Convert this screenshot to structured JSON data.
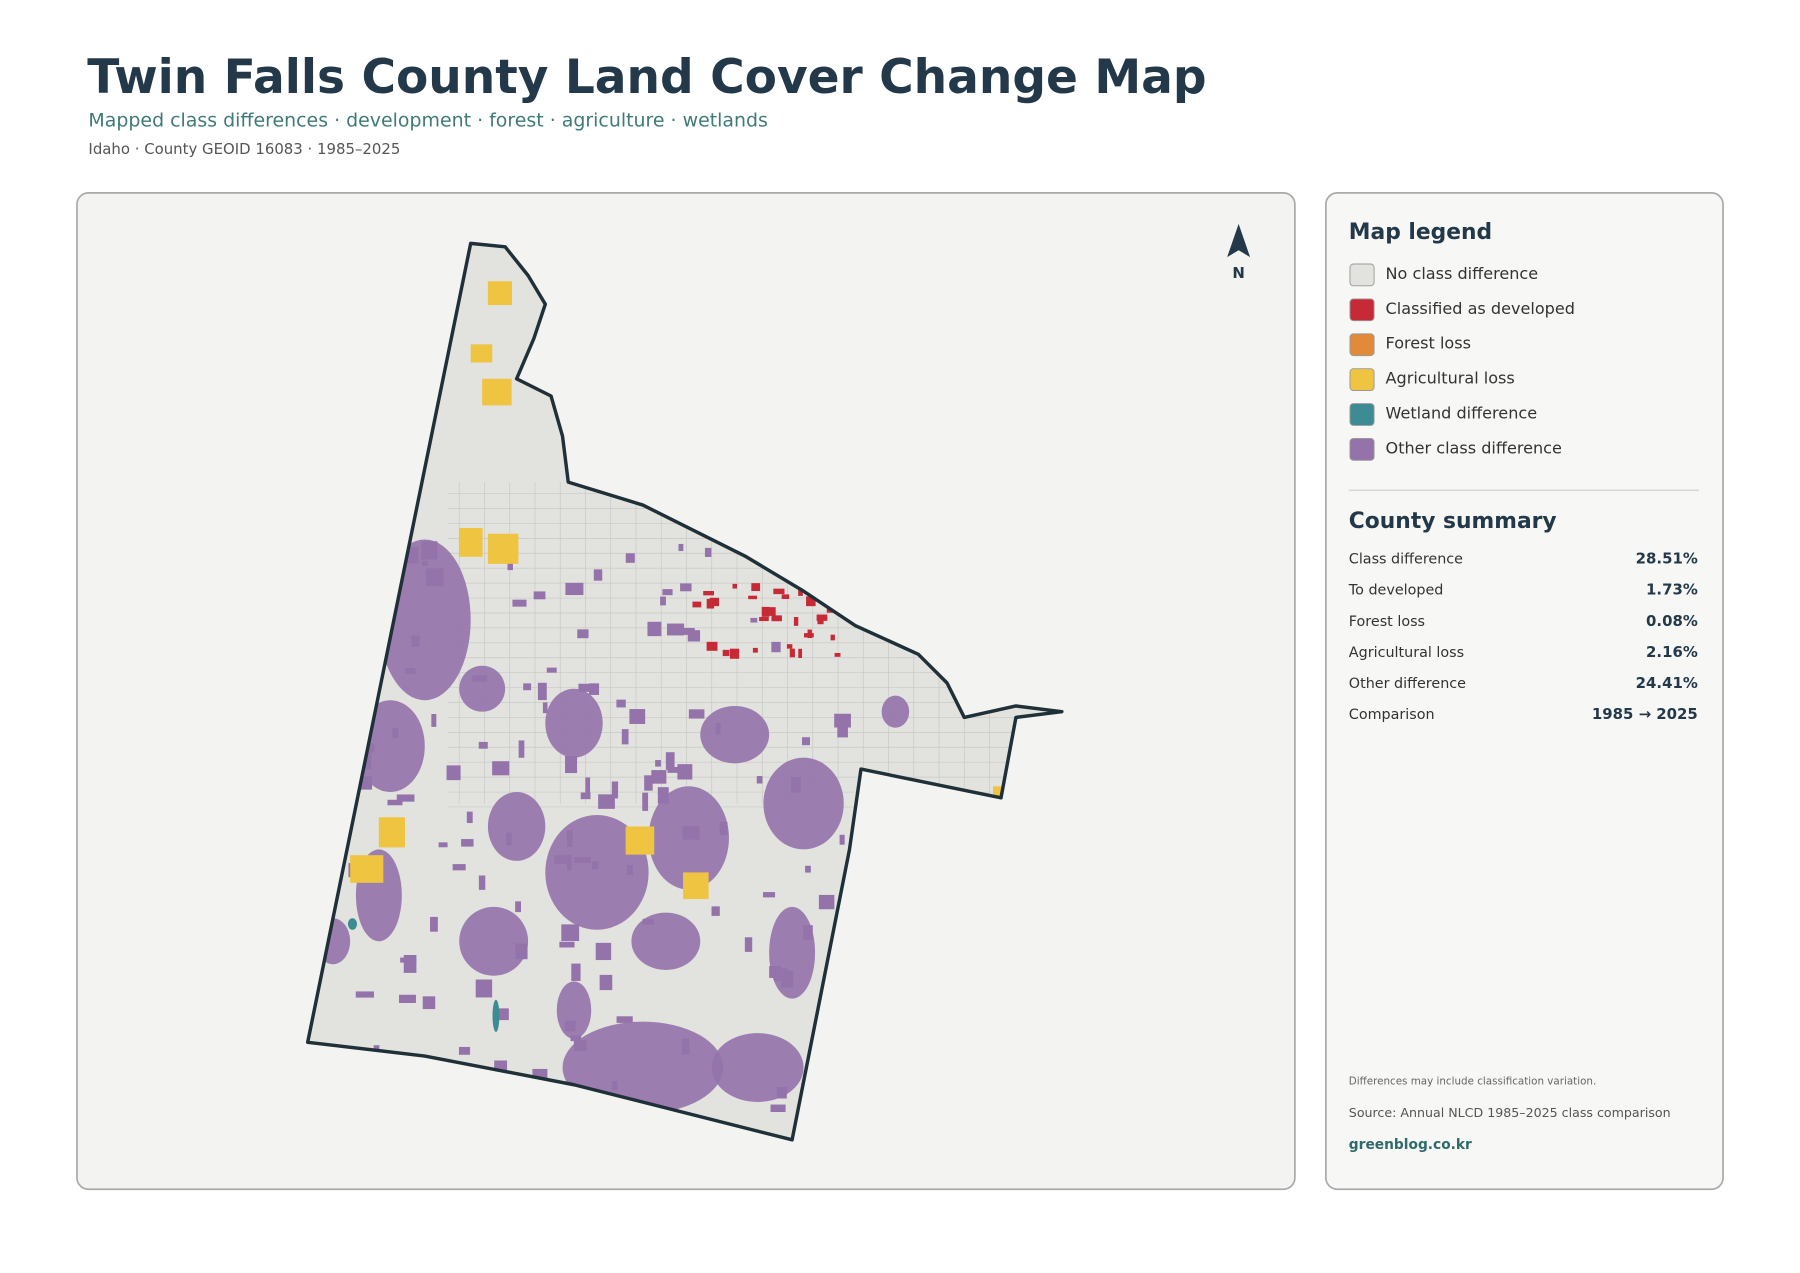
{
  "header": {
    "title": "Twin Falls County Land Cover Change Map",
    "subtitle": "Mapped class differences · development · forest · agriculture · wetlands",
    "meta": "Idaho · County GEOID 16083 · 1985–2025"
  },
  "map": {
    "north_label": "N"
  },
  "legend": {
    "title": "Map legend",
    "items": [
      {
        "label": "No class difference",
        "color": "#e2e2df"
      },
      {
        "label": "Classified as developed",
        "color": "#c62a37"
      },
      {
        "label": "Forest loss",
        "color": "#e08a3a"
      },
      {
        "label": "Agricultural loss",
        "color": "#efc441"
      },
      {
        "label": "Wetland difference",
        "color": "#3e8c93"
      },
      {
        "label": "Other class difference",
        "color": "#9473aa"
      }
    ]
  },
  "summary": {
    "title": "County summary",
    "rows": [
      {
        "label": "Class difference",
        "value": "28.51%"
      },
      {
        "label": "To developed",
        "value": "1.73%"
      },
      {
        "label": "Forest loss",
        "value": "0.08%"
      },
      {
        "label": "Agricultural loss",
        "value": "2.16%"
      },
      {
        "label": "Other difference",
        "value": "24.41%"
      },
      {
        "label": "Comparison",
        "value": "1985 → 2025"
      }
    ]
  },
  "footer": {
    "note": "Differences may include classification variation.",
    "source": "Source: Annual NLCD 1985–2025 class comparison",
    "site": "greenblog.co.kr"
  }
}
